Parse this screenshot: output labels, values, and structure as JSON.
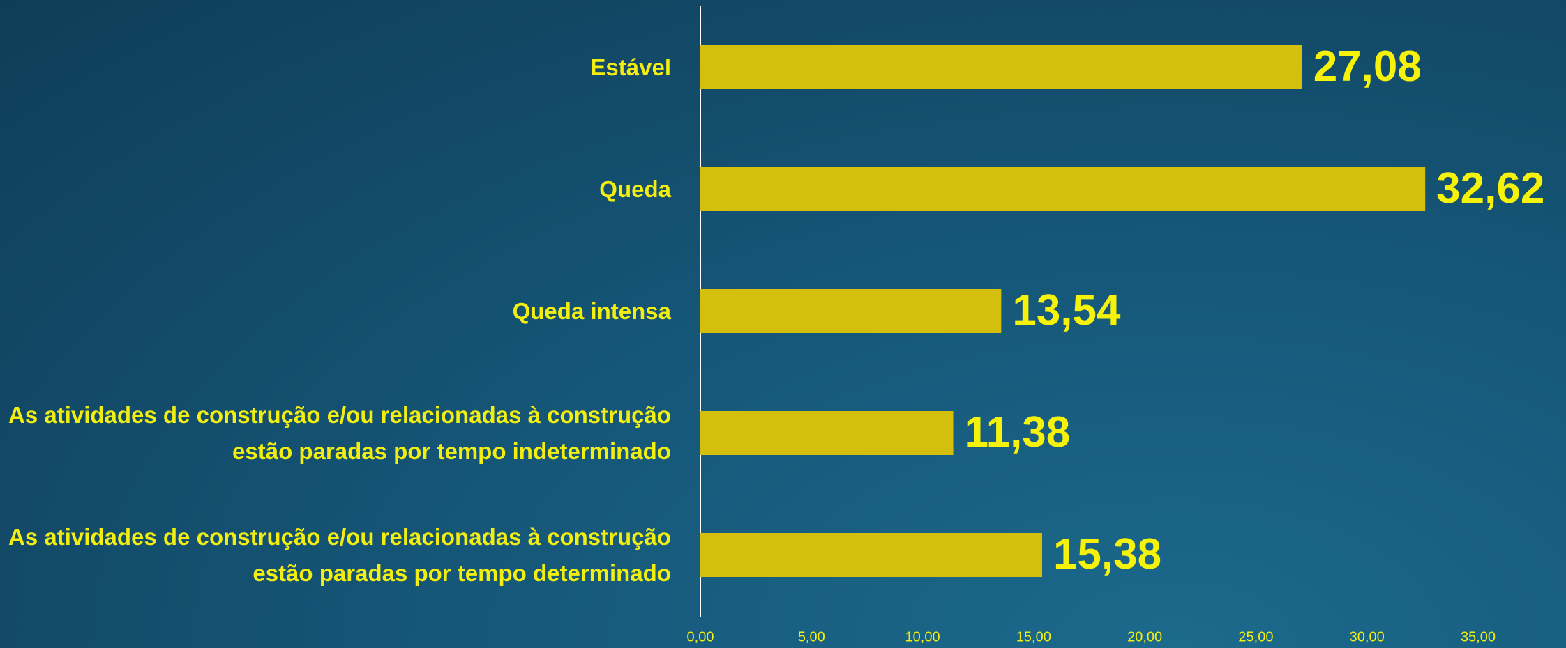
{
  "chart_data": {
    "type": "bar",
    "orientation": "horizontal",
    "categories": [
      "Estável",
      "Queda",
      "Queda intensa",
      "As atividades de construção e/ou relacionadas à construção estão paradas por tempo indeterminado",
      "As atividades de construção e/ou relacionadas à construção estão paradas por tempo determinado"
    ],
    "values": [
      27.08,
      32.62,
      13.54,
      11.38,
      15.38
    ],
    "value_labels": [
      "27,08",
      "32,62",
      "13,54",
      "11,38",
      "15,38"
    ],
    "color": "#d4c00c",
    "xlim": [
      0,
      35
    ],
    "xticks": [
      {
        "value": 0,
        "label": "0,00"
      },
      {
        "value": 5,
        "label": "5,00"
      },
      {
        "value": 10,
        "label": "10,00"
      },
      {
        "value": 15,
        "label": "15,00"
      },
      {
        "value": 20,
        "label": "20,00"
      },
      {
        "value": 25,
        "label": "25,00"
      },
      {
        "value": 30,
        "label": "30,00"
      },
      {
        "value": 35,
        "label": "35,00"
      }
    ],
    "grid": false
  }
}
